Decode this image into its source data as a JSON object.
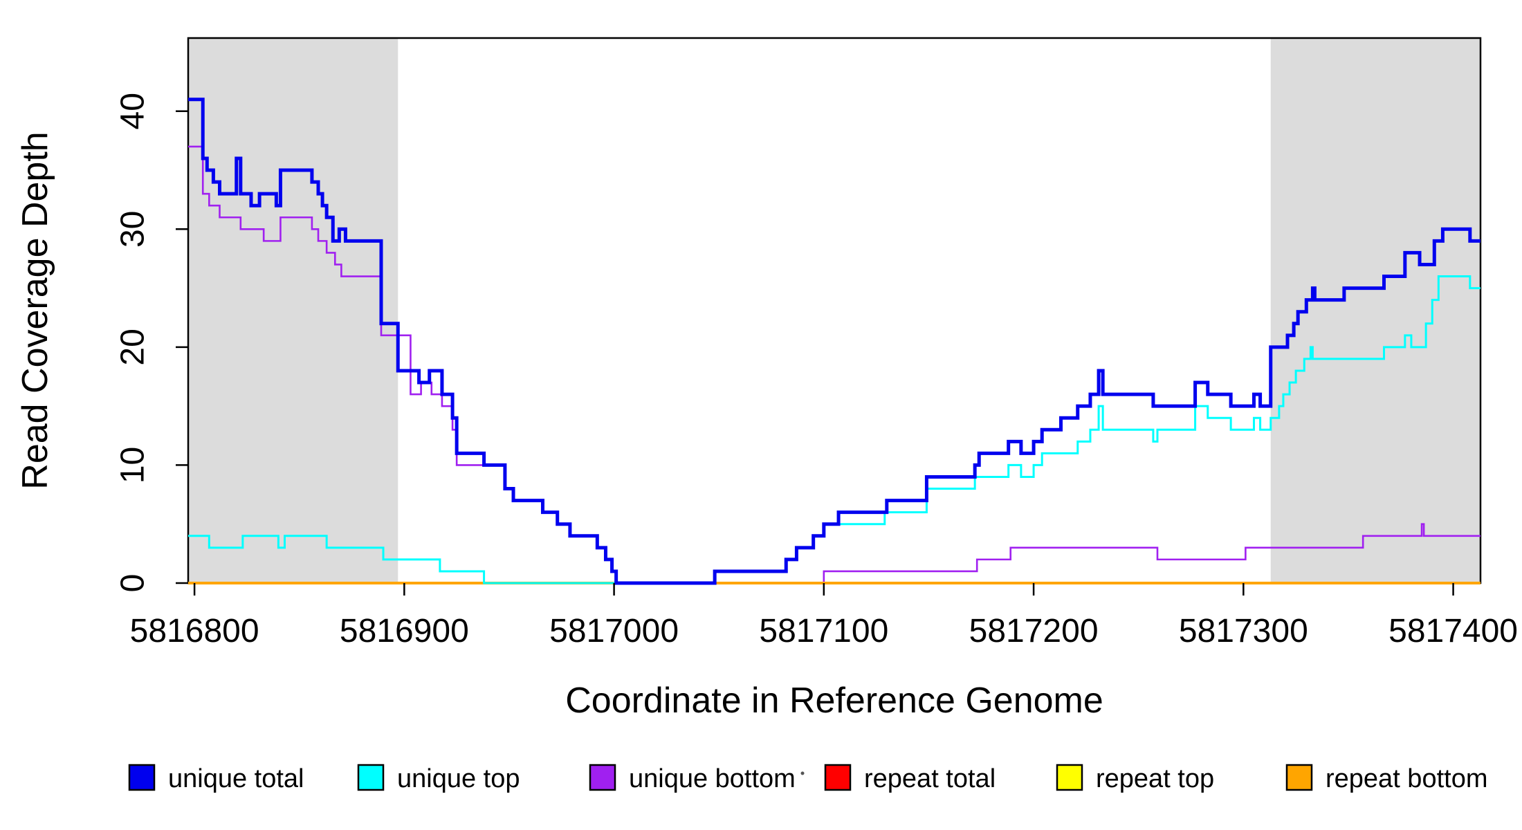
{
  "figure": {
    "background": "#ffffff",
    "frame_color": "#000000",
    "shade_color": "#DCDCDC"
  },
  "chart_data": {
    "type": "line",
    "subtype": "step-coverage",
    "title": "",
    "xlabel": "Coordinate in Reference Genome",
    "ylabel": "Read Coverage Depth",
    "xlim": [
      5816797,
      5817413
    ],
    "ylim": [
      0,
      46.2
    ],
    "x_ticks": [
      5816800,
      5816900,
      5817000,
      5817100,
      5817200,
      5817300,
      5817400
    ],
    "y_ticks": [
      0,
      10,
      20,
      30,
      40
    ],
    "grid": false,
    "legend_position": "bottom",
    "step_mode": "after",
    "shaded_regions": [
      {
        "x0": 5816797,
        "x1": 5816897,
        "color": "#DCDCDC"
      },
      {
        "x0": 5817313,
        "x1": 5817413,
        "color": "#DCDCDC"
      }
    ],
    "series": [
      {
        "name": "unique total",
        "color": "#0000EE",
        "line_width": 5,
        "steps": [
          [
            5816797,
            41
          ],
          [
            5816804,
            36
          ],
          [
            5816806,
            35
          ],
          [
            5816809,
            34
          ],
          [
            5816812,
            33
          ],
          [
            5816820,
            36
          ],
          [
            5816822,
            33
          ],
          [
            5816827,
            32
          ],
          [
            5816831,
            33
          ],
          [
            5816839,
            32
          ],
          [
            5816841,
            35
          ],
          [
            5816856,
            34
          ],
          [
            5816859,
            33
          ],
          [
            5816861,
            32
          ],
          [
            5816863,
            31
          ],
          [
            5816866,
            29
          ],
          [
            5816869,
            30
          ],
          [
            5816872,
            29
          ],
          [
            5816889,
            22
          ],
          [
            5816897,
            18
          ],
          [
            5816907,
            17
          ],
          [
            5816912,
            18
          ],
          [
            5816918,
            16
          ],
          [
            5816923,
            14
          ],
          [
            5816925,
            11
          ],
          [
            5816938,
            10
          ],
          [
            5816948,
            8
          ],
          [
            5816952,
            7
          ],
          [
            5816966,
            6
          ],
          [
            5816973,
            5
          ],
          [
            5816979,
            4
          ],
          [
            5816992,
            3
          ],
          [
            5816996,
            2
          ],
          [
            5816999,
            1
          ],
          [
            5817001,
            0
          ],
          [
            5817048,
            1
          ],
          [
            5817082,
            2
          ],
          [
            5817087,
            3
          ],
          [
            5817095,
            4
          ],
          [
            5817100,
            5
          ],
          [
            5817107,
            6
          ],
          [
            5817130,
            7
          ],
          [
            5817149,
            9
          ],
          [
            5817172,
            10
          ],
          [
            5817174,
            11
          ],
          [
            5817188,
            12
          ],
          [
            5817194,
            11
          ],
          [
            5817200,
            12
          ],
          [
            5817204,
            13
          ],
          [
            5817213,
            14
          ],
          [
            5817221,
            15
          ],
          [
            5817227,
            16
          ],
          [
            5817231,
            18
          ],
          [
            5817233,
            16
          ],
          [
            5817257,
            15
          ],
          [
            5817277,
            17
          ],
          [
            5817283,
            16
          ],
          [
            5817294,
            15
          ],
          [
            5817305,
            16
          ],
          [
            5817308,
            15
          ],
          [
            5817313,
            20
          ],
          [
            5817321,
            21
          ],
          [
            5817324,
            22
          ],
          [
            5817326,
            23
          ],
          [
            5817330,
            24
          ],
          [
            5817333,
            25
          ],
          [
            5817334,
            24
          ],
          [
            5817348,
            25
          ],
          [
            5817367,
            26
          ],
          [
            5817377,
            28
          ],
          [
            5817384,
            27
          ],
          [
            5817391,
            29
          ],
          [
            5817395,
            30
          ],
          [
            5817408,
            29
          ]
        ]
      },
      {
        "name": "unique top",
        "color": "#00FFFF",
        "line_width": 3,
        "steps": [
          [
            5816797,
            4
          ],
          [
            5816807,
            3
          ],
          [
            5816823,
            4
          ],
          [
            5816840,
            3
          ],
          [
            5816843,
            4
          ],
          [
            5816863,
            3
          ],
          [
            5816890,
            2
          ],
          [
            5816917,
            1
          ],
          [
            5816938,
            0
          ],
          [
            5817048,
            1
          ],
          [
            5817082,
            2
          ],
          [
            5817087,
            3
          ],
          [
            5817095,
            4
          ],
          [
            5817100,
            5
          ],
          [
            5817129,
            6
          ],
          [
            5817149,
            8
          ],
          [
            5817172,
            9
          ],
          [
            5817188,
            10
          ],
          [
            5817194,
            9
          ],
          [
            5817200,
            10
          ],
          [
            5817204,
            11
          ],
          [
            5817221,
            12
          ],
          [
            5817227,
            13
          ],
          [
            5817231,
            15
          ],
          [
            5817233,
            13
          ],
          [
            5817257,
            12
          ],
          [
            5817259,
            13
          ],
          [
            5817277,
            15
          ],
          [
            5817283,
            14
          ],
          [
            5817294,
            13
          ],
          [
            5817305,
            14
          ],
          [
            5817308,
            13
          ],
          [
            5817313,
            14
          ],
          [
            5817317,
            15
          ],
          [
            5817319,
            16
          ],
          [
            5817322,
            17
          ],
          [
            5817325,
            18
          ],
          [
            5817329,
            19
          ],
          [
            5817332,
            20
          ],
          [
            5817333,
            19
          ],
          [
            5817367,
            20
          ],
          [
            5817377,
            21
          ],
          [
            5817380,
            20
          ],
          [
            5817387,
            22
          ],
          [
            5817390,
            24
          ],
          [
            5817393,
            26
          ],
          [
            5817408,
            25
          ]
        ]
      },
      {
        "name": "unique bottom",
        "color": "#A020F0",
        "line_width": 2.6,
        "steps": [
          [
            5816797,
            37
          ],
          [
            5816804,
            33
          ],
          [
            5816807,
            32
          ],
          [
            5816812,
            31
          ],
          [
            5816822,
            30
          ],
          [
            5816833,
            29
          ],
          [
            5816841,
            31
          ],
          [
            5816856,
            30
          ],
          [
            5816859,
            29
          ],
          [
            5816863,
            28
          ],
          [
            5816867,
            27
          ],
          [
            5816870,
            26
          ],
          [
            5816889,
            21
          ],
          [
            5816903,
            16
          ],
          [
            5816908,
            17
          ],
          [
            5816913,
            16
          ],
          [
            5816918,
            15
          ],
          [
            5816923,
            13
          ],
          [
            5816925,
            10
          ],
          [
            5816948,
            8
          ],
          [
            5816952,
            7
          ],
          [
            5816966,
            6
          ],
          [
            5816973,
            5
          ],
          [
            5816979,
            4
          ],
          [
            5816992,
            3
          ],
          [
            5816996,
            2
          ],
          [
            5816999,
            1
          ],
          [
            5817001,
            0
          ],
          [
            5817100,
            1
          ],
          [
            5817173,
            2
          ],
          [
            5817189,
            3
          ],
          [
            5817259,
            2
          ],
          [
            5817301,
            3
          ],
          [
            5817357,
            4
          ],
          [
            5817385,
            5
          ],
          [
            5817386,
            4
          ]
        ]
      },
      {
        "name": "repeat total",
        "color": "#FF0000",
        "line_width": 2.5,
        "steps": [
          [
            5816797,
            0
          ]
        ]
      },
      {
        "name": "repeat top",
        "color": "#FFFF00",
        "line_width": 2.5,
        "steps": [
          [
            5816797,
            0
          ]
        ]
      },
      {
        "name": "repeat bottom",
        "color": "#FFA500",
        "line_width": 4,
        "steps": [
          [
            5816797,
            0
          ]
        ]
      }
    ],
    "draw_order": [
      "repeat total",
      "repeat top",
      "unique bottom",
      "repeat bottom",
      "unique top",
      "unique total"
    ]
  },
  "legend": {
    "items": [
      {
        "label": "unique total",
        "color": "#0000EE"
      },
      {
        "label": "unique top",
        "color": "#00FFFF"
      },
      {
        "label": "unique bottom",
        "color": "#A020F0"
      },
      {
        "label": "repeat total",
        "color": "#FF0000"
      },
      {
        "label": "repeat top",
        "color": "#FFFF00"
      },
      {
        "label": "repeat bottom",
        "color": "#FFA500"
      }
    ]
  }
}
